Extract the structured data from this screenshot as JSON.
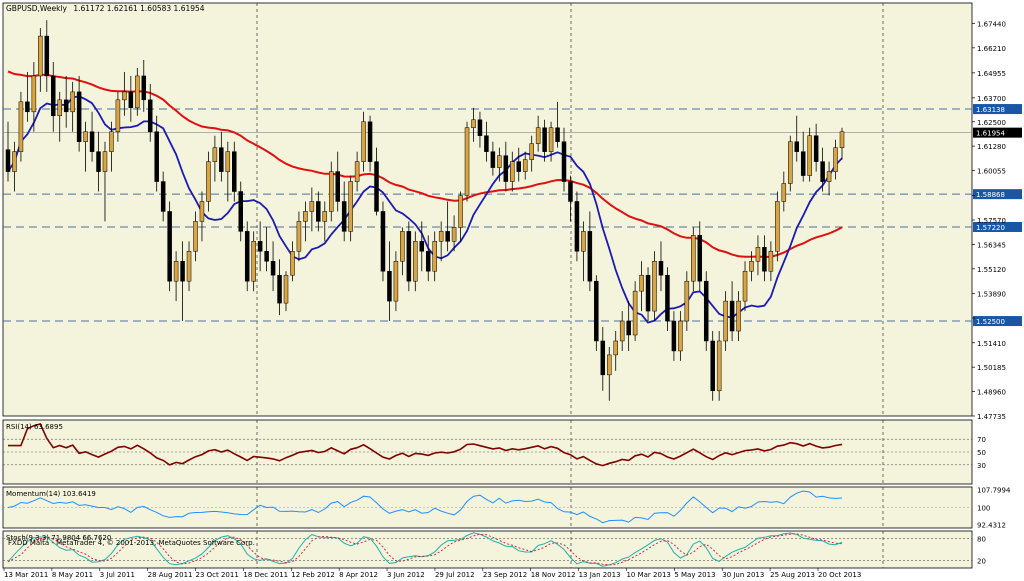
{
  "chart_data": {
    "type": "candlestick",
    "symbol_title": "GBPUSD,Weekly",
    "ohlc_header": "1.61172 1.62161 1.60583 1.61954",
    "colors": {
      "background": "#ffffff",
      "panel_background": "#f4f4dc",
      "bull": "#d9a441",
      "bear": "#000000",
      "ma_fast": "#1a1ab4",
      "ma_slow": "#e01010",
      "rsi": "#800000",
      "momentum": "#1e90ff",
      "stoch_main": "#20b2aa",
      "stoch_signal": "#dc143c",
      "hline": "#4a6fa0",
      "price_tag": "#1a56a6"
    },
    "price_axis": {
      "ticks": [
        "1.67440",
        "1.66210",
        "1.64955",
        "1.63700",
        "1.62500",
        "1.61280",
        "1.60055",
        "1.58800",
        "1.57570",
        "1.56345",
        "1.55120",
        "1.53890",
        "1.52650",
        "1.51410",
        "1.50185",
        "1.48960",
        "1.47735"
      ],
      "ylim": [
        1.47735,
        1.6846
      ]
    },
    "horizontal_levels": [
      "1.63138",
      "1.58868",
      "1.57220",
      "1.52500"
    ],
    "current_price_label": "1.61954",
    "x_axis": {
      "labels": [
        "13 Mar 2011",
        "8 May 2011",
        "3 Jul 2011",
        "28 Aug 2011",
        "23 Oct 2011",
        "18 Dec 2011",
        "12 Feb 2012",
        "8 Apr 2012",
        "3 Jun 2012",
        "29 Jul 2012",
        "23 Sep 2012",
        "18 Nov 2012",
        "13 Jan 2013",
        "10 Mar 2013",
        "5 May 2013",
        "30 Jun 2013",
        "25 Aug 2013",
        "20 Oct 2013"
      ]
    },
    "candles": [
      [
        1.611,
        1.625,
        1.595,
        1.6
      ],
      [
        1.6,
        1.615,
        1.59,
        1.61
      ],
      [
        1.61,
        1.64,
        1.605,
        1.635
      ],
      [
        1.635,
        1.65,
        1.625,
        1.63
      ],
      [
        1.63,
        1.655,
        1.62,
        1.648
      ],
      [
        1.648,
        1.672,
        1.64,
        1.668
      ],
      [
        1.668,
        1.676,
        1.64,
        1.648
      ],
      [
        1.648,
        1.655,
        1.62,
        1.628
      ],
      [
        1.628,
        1.64,
        1.615,
        1.636
      ],
      [
        1.636,
        1.648,
        1.622,
        1.63
      ],
      [
        1.63,
        1.645,
        1.62,
        1.64
      ],
      [
        1.64,
        1.648,
        1.61,
        1.615
      ],
      [
        1.615,
        1.625,
        1.6,
        1.62
      ],
      [
        1.62,
        1.63,
        1.605,
        1.61
      ],
      [
        1.61,
        1.62,
        1.59,
        1.6
      ],
      [
        1.6,
        1.615,
        1.575,
        1.61
      ],
      [
        1.61,
        1.625,
        1.6,
        1.62
      ],
      [
        1.62,
        1.64,
        1.615,
        1.636
      ],
      [
        1.636,
        1.65,
        1.628,
        1.64
      ],
      [
        1.64,
        1.648,
        1.625,
        1.632
      ],
      [
        1.632,
        1.652,
        1.628,
        1.648
      ],
      [
        1.648,
        1.656,
        1.63,
        1.636
      ],
      [
        1.636,
        1.644,
        1.615,
        1.62
      ],
      [
        1.62,
        1.628,
        1.59,
        1.595
      ],
      [
        1.595,
        1.6,
        1.575,
        1.58
      ],
      [
        1.58,
        1.585,
        1.54,
        1.545
      ],
      [
        1.545,
        1.56,
        1.535,
        1.555
      ],
      [
        1.555,
        1.565,
        1.525,
        1.545
      ],
      [
        1.545,
        1.565,
        1.54,
        1.56
      ],
      [
        1.56,
        1.58,
        1.555,
        1.575
      ],
      [
        1.575,
        1.59,
        1.565,
        1.585
      ],
      [
        1.585,
        1.61,
        1.58,
        1.605
      ],
      [
        1.605,
        1.618,
        1.595,
        1.612
      ],
      [
        1.612,
        1.62,
        1.595,
        1.6
      ],
      [
        1.6,
        1.615,
        1.585,
        1.61
      ],
      [
        1.61,
        1.615,
        1.585,
        1.59
      ],
      [
        1.59,
        1.595,
        1.565,
        1.57
      ],
      [
        1.57,
        1.575,
        1.54,
        1.545
      ],
      [
        1.545,
        1.57,
        1.54,
        1.565
      ],
      [
        1.565,
        1.575,
        1.55,
        1.56
      ],
      [
        1.56,
        1.572,
        1.55,
        1.555
      ],
      [
        1.555,
        1.565,
        1.54,
        1.548
      ],
      [
        1.548,
        1.556,
        1.528,
        1.534
      ],
      [
        1.534,
        1.55,
        1.53,
        1.548
      ],
      [
        1.548,
        1.565,
        1.545,
        1.56
      ],
      [
        1.56,
        1.58,
        1.555,
        1.575
      ],
      [
        1.575,
        1.585,
        1.565,
        1.58
      ],
      [
        1.58,
        1.592,
        1.57,
        1.585
      ],
      [
        1.585,
        1.59,
        1.57,
        1.575
      ],
      [
        1.575,
        1.585,
        1.565,
        1.58
      ],
      [
        1.58,
        1.605,
        1.575,
        1.6
      ],
      [
        1.6,
        1.61,
        1.58,
        1.585
      ],
      [
        1.585,
        1.595,
        1.565,
        1.57
      ],
      [
        1.57,
        1.598,
        1.565,
        1.595
      ],
      [
        1.595,
        1.61,
        1.59,
        1.605
      ],
      [
        1.605,
        1.63,
        1.6,
        1.625
      ],
      [
        1.625,
        1.628,
        1.6,
        1.605
      ],
      [
        1.605,
        1.612,
        1.578,
        1.58
      ],
      [
        1.58,
        1.585,
        1.545,
        1.55
      ],
      [
        1.55,
        1.565,
        1.525,
        1.535
      ],
      [
        1.535,
        1.56,
        1.53,
        1.555
      ],
      [
        1.555,
        1.572,
        1.548,
        1.57
      ],
      [
        1.57,
        1.575,
        1.54,
        1.545
      ],
      [
        1.545,
        1.57,
        1.54,
        1.565
      ],
      [
        1.565,
        1.575,
        1.55,
        1.56
      ],
      [
        1.56,
        1.568,
        1.545,
        1.55
      ],
      [
        1.55,
        1.57,
        1.545,
        1.565
      ],
      [
        1.565,
        1.575,
        1.555,
        1.57
      ],
      [
        1.57,
        1.585,
        1.56,
        1.565
      ],
      [
        1.565,
        1.578,
        1.56,
        1.572
      ],
      [
        1.572,
        1.59,
        1.565,
        1.588
      ],
      [
        1.588,
        1.625,
        1.585,
        1.622
      ],
      [
        1.622,
        1.632,
        1.615,
        1.626
      ],
      [
        1.626,
        1.63,
        1.612,
        1.618
      ],
      [
        1.618,
        1.625,
        1.605,
        1.61
      ],
      [
        1.61,
        1.615,
        1.598,
        1.602
      ],
      [
        1.602,
        1.612,
        1.595,
        1.608
      ],
      [
        1.608,
        1.615,
        1.59,
        1.595
      ],
      [
        1.595,
        1.61,
        1.59,
        1.605
      ],
      [
        1.605,
        1.612,
        1.595,
        1.6
      ],
      [
        1.6,
        1.61,
        1.596,
        1.606
      ],
      [
        1.606,
        1.618,
        1.6,
        1.614
      ],
      [
        1.614,
        1.628,
        1.61,
        1.622
      ],
      [
        1.622,
        1.626,
        1.605,
        1.61
      ],
      [
        1.61,
        1.625,
        1.605,
        1.622
      ],
      [
        1.622,
        1.635,
        1.612,
        1.615
      ],
      [
        1.615,
        1.622,
        1.59,
        1.595
      ],
      [
        1.595,
        1.598,
        1.575,
        1.585
      ],
      [
        1.585,
        1.59,
        1.555,
        1.56
      ],
      [
        1.56,
        1.575,
        1.545,
        1.57
      ],
      [
        1.57,
        1.58,
        1.54,
        1.545
      ],
      [
        1.545,
        1.548,
        1.51,
        1.515
      ],
      [
        1.515,
        1.522,
        1.49,
        1.498
      ],
      [
        1.498,
        1.512,
        1.485,
        1.508
      ],
      [
        1.508,
        1.52,
        1.5,
        1.515
      ],
      [
        1.515,
        1.53,
        1.51,
        1.525
      ],
      [
        1.525,
        1.535,
        1.51,
        1.518
      ],
      [
        1.518,
        1.545,
        1.515,
        1.54
      ],
      [
        1.54,
        1.555,
        1.53,
        1.548
      ],
      [
        1.548,
        1.552,
        1.525,
        1.53
      ],
      [
        1.53,
        1.56,
        1.525,
        1.555
      ],
      [
        1.555,
        1.565,
        1.54,
        1.548
      ],
      [
        1.548,
        1.552,
        1.52,
        1.525
      ],
      [
        1.525,
        1.53,
        1.505,
        1.51
      ],
      [
        1.51,
        1.53,
        1.505,
        1.525
      ],
      [
        1.525,
        1.55,
        1.52,
        1.545
      ],
      [
        1.545,
        1.572,
        1.54,
        1.568
      ],
      [
        1.568,
        1.575,
        1.54,
        1.545
      ],
      [
        1.545,
        1.55,
        1.51,
        1.515
      ],
      [
        1.515,
        1.52,
        1.485,
        1.49
      ],
      [
        1.49,
        1.52,
        1.485,
        1.515
      ],
      [
        1.515,
        1.54,
        1.51,
        1.535
      ],
      [
        1.535,
        1.545,
        1.515,
        1.52
      ],
      [
        1.52,
        1.54,
        1.515,
        1.535
      ],
      [
        1.535,
        1.555,
        1.53,
        1.55
      ],
      [
        1.55,
        1.56,
        1.545,
        1.555
      ],
      [
        1.555,
        1.568,
        1.548,
        1.562
      ],
      [
        1.562,
        1.568,
        1.545,
        1.55
      ],
      [
        1.55,
        1.565,
        1.545,
        1.56
      ],
      [
        1.56,
        1.59,
        1.555,
        1.585
      ],
      [
        1.585,
        1.6,
        1.58,
        1.594
      ],
      [
        1.594,
        1.618,
        1.59,
        1.615
      ],
      [
        1.615,
        1.628,
        1.605,
        1.61
      ],
      [
        1.61,
        1.62,
        1.595,
        1.598
      ],
      [
        1.598,
        1.622,
        1.595,
        1.618
      ],
      [
        1.618,
        1.624,
        1.6,
        1.605
      ],
      [
        1.605,
        1.612,
        1.59,
        1.595
      ],
      [
        1.595,
        1.605,
        1.588,
        1.6
      ],
      [
        1.6,
        1.616,
        1.596,
        1.612
      ],
      [
        1.612,
        1.622,
        1.606,
        1.62
      ]
    ],
    "indicators": [
      {
        "name": "RSI(14)",
        "value_text": "63.6895",
        "levels": [
          "70",
          "50",
          "30"
        ],
        "ylim": [
          0,
          100
        ]
      },
      {
        "name": "Momentum(14)",
        "value_text": "103.6419",
        "ticks": [
          "107.7994",
          "100",
          "92.4312"
        ],
        "ylim": [
          91,
          109
        ]
      },
      {
        "name": "Stoch(9,3,3)",
        "value_text": "71.9804 66.7620",
        "ticks": [
          "80",
          "20"
        ],
        "ylim": [
          0,
          100
        ]
      }
    ],
    "footer": "FXDD Malta - MetaTrader 4, © 2001-2013, MetaQuotes Software Corp."
  }
}
